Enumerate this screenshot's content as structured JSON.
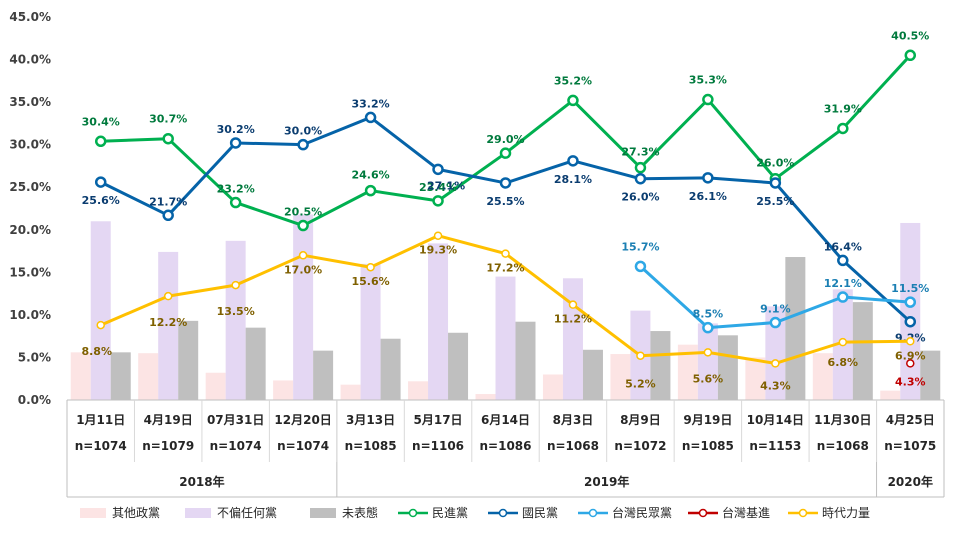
{
  "chart_data": {
    "type": "bar+line",
    "y_axis": {
      "min": 0,
      "max": 45,
      "step": 5,
      "unit": "%",
      "tick_labels": [
        "0.0%",
        "5.0%",
        "10.0%",
        "15.0%",
        "20.0%",
        "25.0%",
        "30.0%",
        "35.0%",
        "40.0%",
        "45.0%"
      ]
    },
    "categories": [
      {
        "date": "1月11日",
        "n": "n=1074"
      },
      {
        "date": "4月19日",
        "n": "n=1079"
      },
      {
        "date": "07月31日",
        "n": "n=1074"
      },
      {
        "date": "12月20日",
        "n": "n=1074"
      },
      {
        "date": "3月13日",
        "n": "n=1085"
      },
      {
        "date": "5月17日",
        "n": "n=1106"
      },
      {
        "date": "6月14日",
        "n": "n=1086"
      },
      {
        "date": "8月3日",
        "n": "n=1068"
      },
      {
        "date": "8月9日",
        "n": "n=1072"
      },
      {
        "date": "9月19日",
        "n": "n=1085"
      },
      {
        "date": "10月14日",
        "n": "n=1153"
      },
      {
        "date": "11月30日",
        "n": "n=1068"
      },
      {
        "date": "4月25日",
        "n": "n=1075"
      }
    ],
    "year_groups": [
      {
        "label": "2018年",
        "start": 0,
        "end": 3
      },
      {
        "label": "2019年",
        "start": 4,
        "end": 11
      },
      {
        "label": "2020年",
        "start": 12,
        "end": 12
      }
    ],
    "bar_series": [
      {
        "name": "其他政黨",
        "color": "#fce4e4",
        "values": [
          5.6,
          5.5,
          3.2,
          2.3,
          1.8,
          2.2,
          0.7,
          3.0,
          5.4,
          6.5,
          5.0,
          5.5,
          1.1
        ]
      },
      {
        "name": "不偏任何黨",
        "color": "#e4d7f3",
        "values": [
          21.0,
          17.4,
          18.7,
          21.8,
          16.0,
          18.4,
          14.5,
          14.3,
          10.5,
          9.0,
          11.0,
          13.0,
          20.8
        ]
      },
      {
        "name": "未表態",
        "color": "#bfbfbf",
        "values": [
          5.6,
          9.3,
          8.5,
          5.8,
          7.2,
          7.9,
          9.2,
          5.9,
          8.1,
          7.6,
          16.8,
          11.5,
          5.8
        ]
      }
    ],
    "line_series": [
      {
        "name": "民進黨",
        "color": "#00b050",
        "values": [
          30.4,
          30.7,
          23.2,
          20.5,
          24.6,
          23.4,
          29.0,
          35.2,
          27.3,
          35.3,
          26.0,
          31.9,
          40.5
        ],
        "labels": [
          "30.4%",
          "30.7%",
          "23.2%",
          "20.5%",
          "24.6%",
          "23.4%",
          "29.0%",
          "35.2%",
          "27.3%",
          "35.3%",
          "26.0%",
          "31.9%",
          "40.5%"
        ]
      },
      {
        "name": "國民黨",
        "color": "#0563a8",
        "values": [
          25.6,
          21.7,
          30.2,
          30.0,
          33.2,
          27.1,
          25.5,
          28.1,
          26.0,
          26.1,
          25.5,
          16.4,
          9.2
        ],
        "labels": [
          "25.6%",
          "21.7%",
          "30.2%",
          "30.0%",
          "33.2%",
          "27.1%",
          "25.5%",
          "28.1%",
          "26.0%",
          "26.1%",
          "25.5%",
          "16.4%",
          "9.2%"
        ]
      },
      {
        "name": "台灣民眾黨",
        "color": "#2ea8e6",
        "values": [
          null,
          null,
          null,
          null,
          null,
          null,
          null,
          null,
          15.7,
          8.5,
          9.1,
          12.1,
          11.5
        ],
        "labels": [
          "",
          "",
          "",
          "",
          "",
          "",
          "",
          "",
          "15.7%",
          "8.5%",
          "9.1%",
          "12.1%",
          "11.5%"
        ]
      },
      {
        "name": "台灣基進",
        "color": "#c00000",
        "values": [
          null,
          null,
          null,
          null,
          null,
          null,
          null,
          null,
          null,
          null,
          null,
          null,
          4.3
        ],
        "labels": [
          "",
          "",
          "",
          "",
          "",
          "",
          "",
          "",
          "",
          "",
          "",
          "",
          "4.3%"
        ]
      },
      {
        "name": "時代力量",
        "color": "#ffc000",
        "values": [
          8.8,
          12.2,
          13.5,
          17.0,
          15.6,
          19.3,
          17.2,
          11.2,
          5.2,
          5.6,
          4.3,
          6.8,
          6.9
        ],
        "labels": [
          "8.8%",
          "12.2%",
          "13.5%",
          "17.0%",
          "15.6%",
          "19.3%",
          "17.2%",
          "11.2%",
          "5.2%",
          "5.6%",
          "4.3%",
          "6.8%",
          "6.9%"
        ]
      }
    ],
    "legend": [
      "其他政黨",
      "不偏任何黨",
      "未表態",
      "民進黨",
      "國民黨",
      "台灣民眾黨",
      "台灣基進",
      "時代力量"
    ],
    "legend_position": "bottom",
    "grid": false
  }
}
